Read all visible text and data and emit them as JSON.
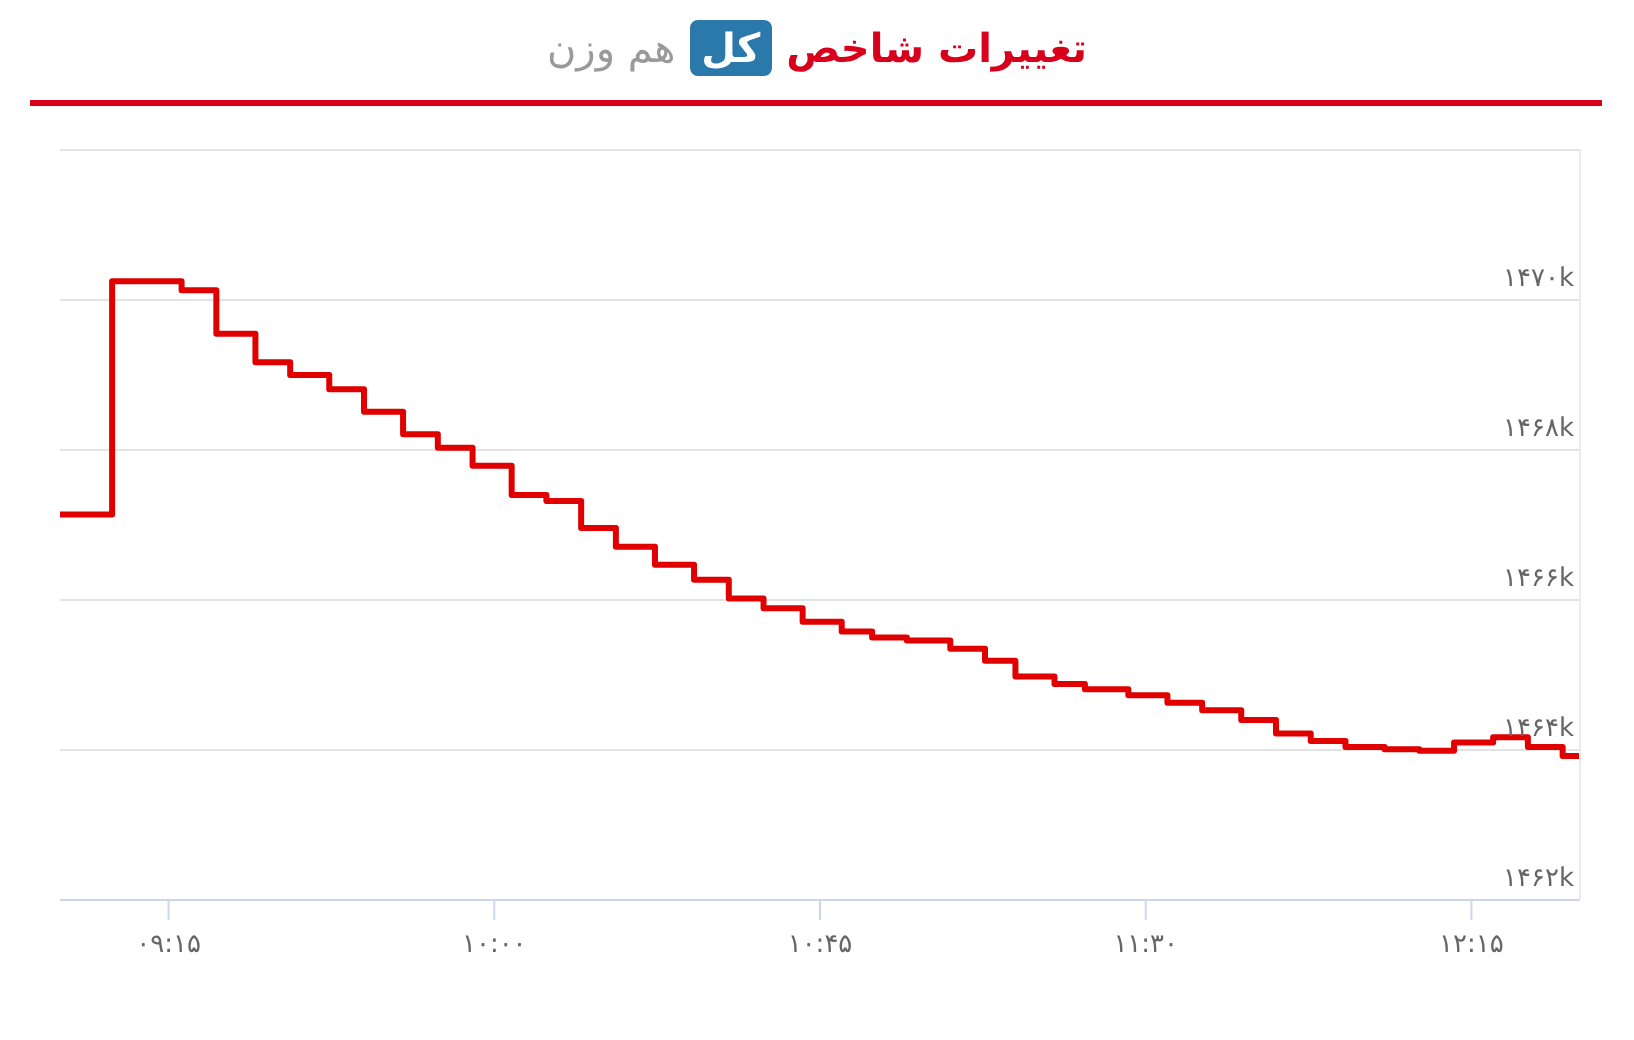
{
  "chart_data": {
    "type": "step",
    "title": "تغییرات شاخص کل هم وزن",
    "x": [
      9.0,
      9.12,
      9.28,
      9.36,
      9.45,
      9.53,
      9.62,
      9.7,
      9.79,
      9.87,
      9.95,
      10.04,
      10.12,
      10.2,
      10.28,
      10.37,
      10.46,
      10.54,
      10.62,
      10.71,
      10.8,
      10.87,
      10.95,
      11.05,
      11.13,
      11.2,
      11.29,
      11.36,
      11.46,
      11.55,
      11.63,
      11.72,
      11.8,
      11.88,
      11.96,
      12.05,
      12.13,
      12.21,
      12.3,
      12.38,
      12.46,
      12.5
    ],
    "values": [
      1467140,
      1470250,
      1470130,
      1469550,
      1469170,
      1469000,
      1468810,
      1468510,
      1468210,
      1468030,
      1467790,
      1467400,
      1467320,
      1466960,
      1466710,
      1466470,
      1466270,
      1466020,
      1465890,
      1465710,
      1465580,
      1465500,
      1465460,
      1465350,
      1465190,
      1464980,
      1464880,
      1464810,
      1464730,
      1464630,
      1464530,
      1464400,
      1464220,
      1464120,
      1464040,
      1464010,
      1463990,
      1464100,
      1464170,
      1464040,
      1463920,
      1463880
    ],
    "color": "#e00000",
    "xlim": [
      9,
      12.5
    ],
    "xticks": [
      {
        "value": 9.25,
        "label": "۰۹:۱۵"
      },
      {
        "value": 10,
        "label": "۱۰:۰۰"
      },
      {
        "value": 10.75,
        "label": "۱۰:۴۵"
      },
      {
        "value": 11.5,
        "label": "۱۱:۳۰"
      },
      {
        "value": 12.25,
        "label": "۱۲:۱۵"
      }
    ],
    "ylim": [
      1462000,
      1472000
    ],
    "yticks": [
      {
        "value": 1462000,
        "label": "۱۴۶۲k"
      },
      {
        "value": 1464000,
        "label": "۱۴۶۴k"
      },
      {
        "value": 1466000,
        "label": "۱۴۶۶k"
      },
      {
        "value": 1468000,
        "label": "۱۴۶۸k"
      },
      {
        "value": 1470000,
        "label": "۱۴۷۰k"
      },
      {
        "value": 1472000,
        "label": null
      }
    ],
    "grid": "y",
    "marker": "none",
    "line_style": "solid"
  }
}
